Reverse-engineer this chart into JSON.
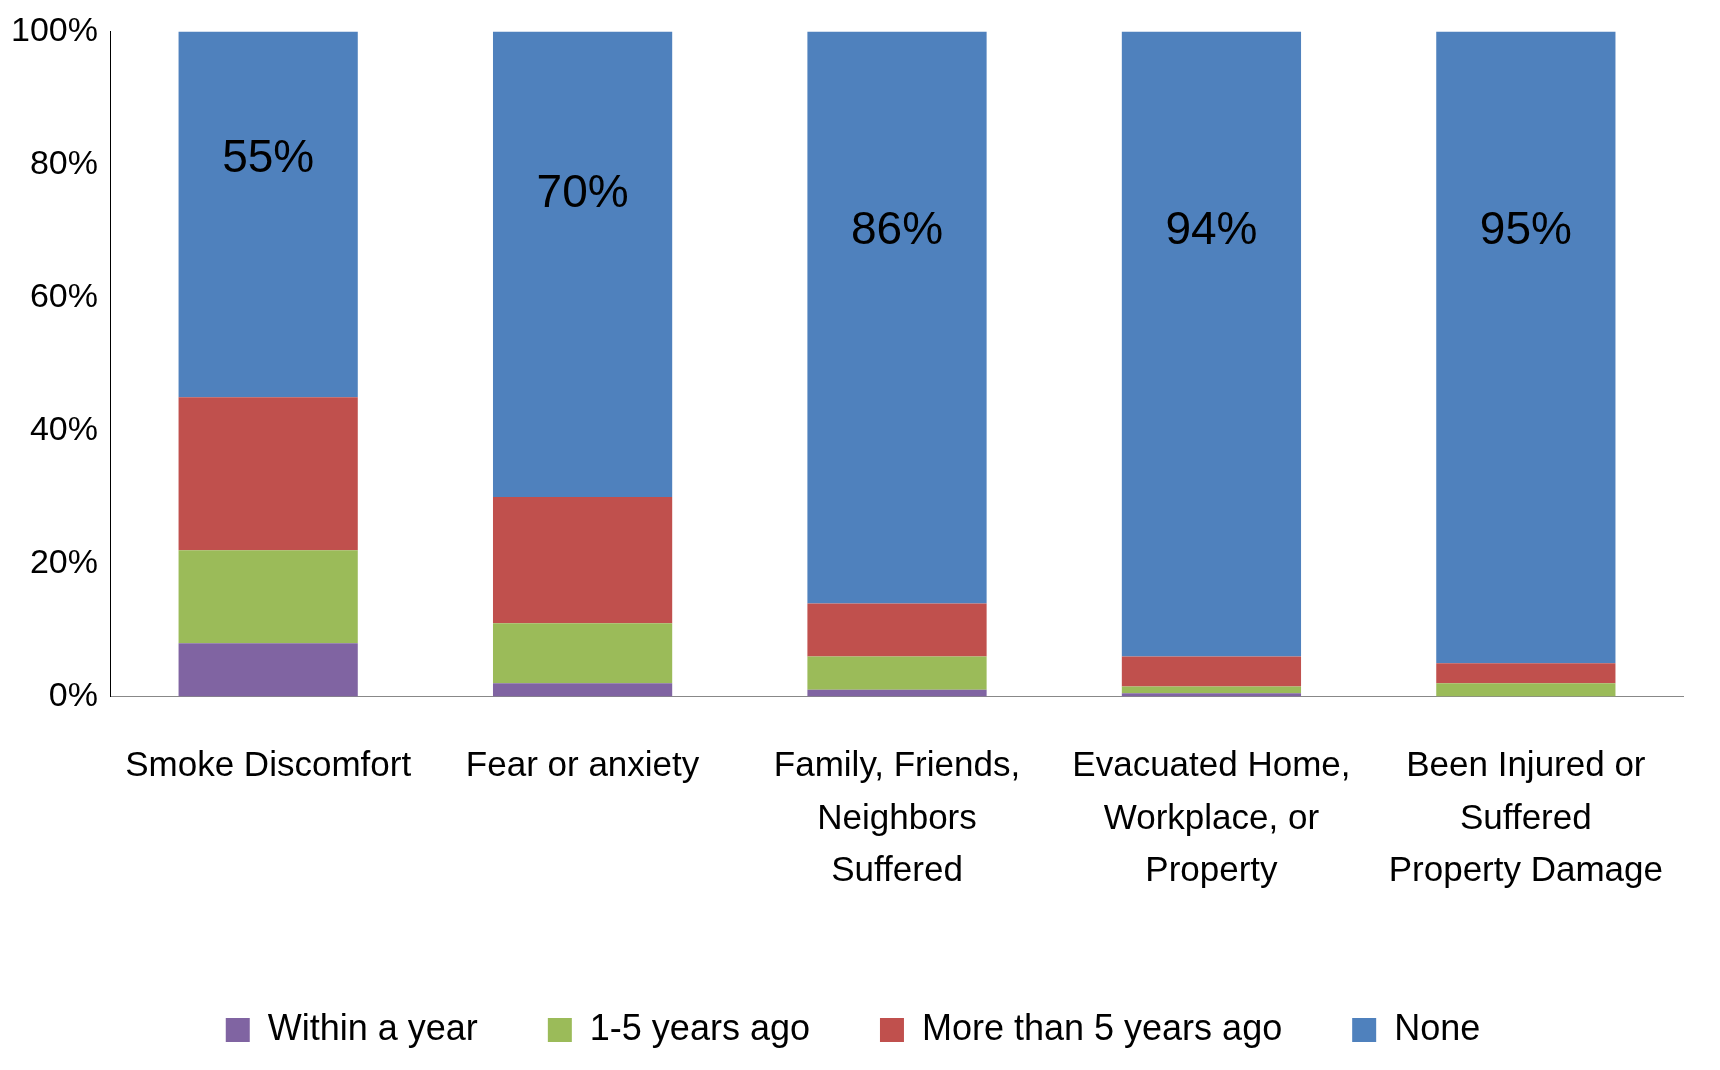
{
  "chart_data": {
    "type": "bar",
    "stacked": true,
    "categories": [
      "Smoke Discomfort",
      "Fear or anxiety",
      "Family, Friends, Neighbors Suffered",
      "Evacuated Home, Workplace, or Property",
      "Been Injured or Suffered Property Damage"
    ],
    "series": [
      {
        "name": "Within a year",
        "color": "#8064a2",
        "values": [
          8,
          2,
          1,
          0.5,
          0
        ]
      },
      {
        "name": "1-5 years ago",
        "color": "#9bbb59",
        "values": [
          14,
          9,
          5,
          1,
          2
        ]
      },
      {
        "name": "More than 5 years ago",
        "color": "#c0504d",
        "values": [
          23,
          19,
          8,
          4.5,
          3
        ]
      },
      {
        "name": "None",
        "color": "#4f81bd",
        "values": [
          55,
          70,
          86,
          94,
          95
        ],
        "value_labels": [
          "55%",
          "70%",
          "86%",
          "94%",
          "95%"
        ]
      }
    ],
    "ylim": [
      0,
      100
    ],
    "yticks": [
      {
        "value": 0,
        "label": "0%"
      },
      {
        "value": 20,
        "label": "20%"
      },
      {
        "value": 40,
        "label": "40%"
      },
      {
        "value": 60,
        "label": "60%"
      },
      {
        "value": 80,
        "label": "80%"
      },
      {
        "value": 100,
        "label": "100%"
      }
    ],
    "grid": false,
    "legend": "bottom"
  }
}
